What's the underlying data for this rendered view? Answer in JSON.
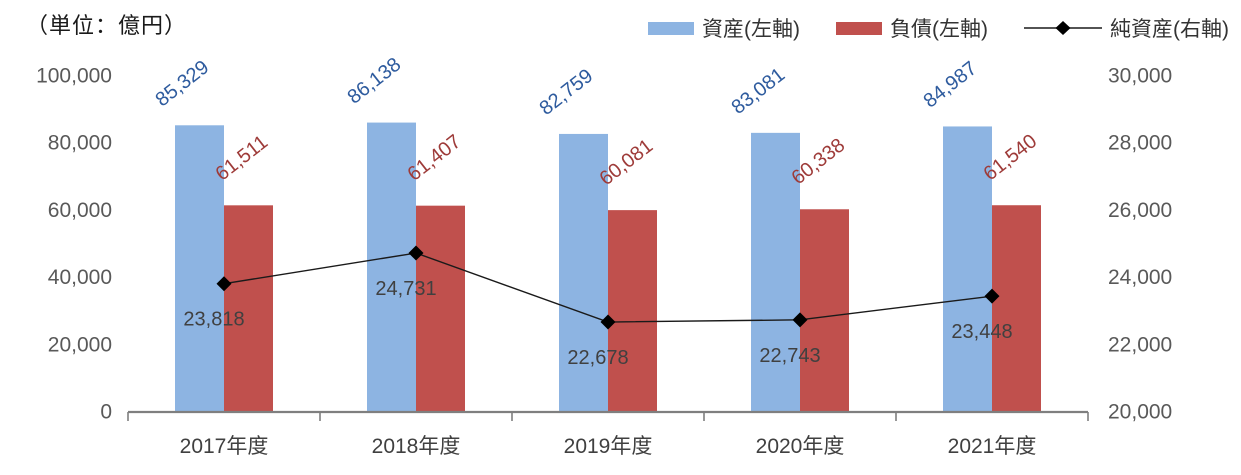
{
  "unit_label": "（単位：億円）",
  "colors": {
    "assets_bar": "#8DB4E2",
    "liabilities_bar": "#C0504D",
    "assets_label": "#2E5B9E",
    "liabilities_label": "#9E3B39",
    "net_assets_line": "#1A1A1A",
    "net_assets_marker": "#000000",
    "net_assets_label": "#404040",
    "axis_line": "#7F7F7F",
    "axis_tick_label": "#595959",
    "category_label": "#404040",
    "background": "#FFFFFF"
  },
  "chart_data": {
    "type": "bar",
    "subtype": "grouped-bars-with-line",
    "title": "",
    "unit_note": "（単位：億円）",
    "categories": [
      "2017年度",
      "2018年度",
      "2019年度",
      "2020年度",
      "2021年度"
    ],
    "series": [
      {
        "key": "assets",
        "name": "資産(左軸)",
        "type": "bar",
        "axis": "left",
        "color": "#8DB4E2",
        "label_color": "#2E5B9E",
        "values": [
          85329,
          86138,
          82759,
          83081,
          84987
        ]
      },
      {
        "key": "liabilities",
        "name": "負債(左軸)",
        "type": "bar",
        "axis": "left",
        "color": "#C0504D",
        "label_color": "#9E3B39",
        "values": [
          61511,
          61407,
          60081,
          60338,
          61540
        ]
      },
      {
        "key": "net-assets",
        "name": "純資産(右軸)",
        "type": "line",
        "marker": "diamond",
        "axis": "right",
        "color": "#1A1A1A",
        "marker_color": "#000000",
        "label_color": "#404040",
        "values": [
          23818,
          24731,
          22678,
          22743,
          23448
        ]
      }
    ],
    "left_axis": {
      "min": 0,
      "max": 100000,
      "step": 20000,
      "ticks": [
        "0",
        "20,000",
        "40,000",
        "60,000",
        "80,000",
        "100,000"
      ]
    },
    "right_axis": {
      "min": 20000,
      "max": 30000,
      "step": 2000,
      "ticks": [
        "20,000",
        "22,000",
        "24,000",
        "26,000",
        "28,000",
        "30,000"
      ]
    },
    "grid": false,
    "legend_position": "top-right",
    "data_labels": true
  }
}
